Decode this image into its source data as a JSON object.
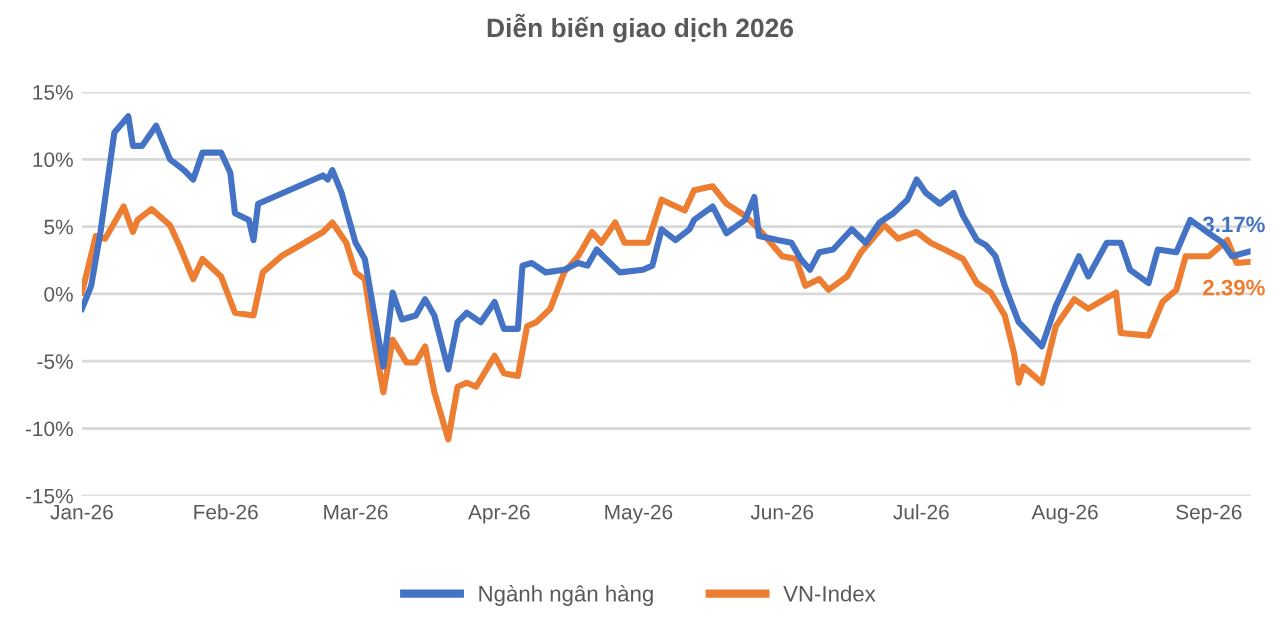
{
  "chart_data": {
    "type": "line",
    "title": "Diễn biến giao dịch 2026",
    "series": [
      {
        "name": "Ngành ngân hàng",
        "color": "#4472c4",
        "x": [
          "2026-01-01",
          "2026-01-03",
          "2026-01-05",
          "2026-01-08",
          "2026-01-11",
          "2026-01-12",
          "2026-01-14",
          "2026-01-17",
          "2026-01-20",
          "2026-01-23",
          "2026-01-25",
          "2026-01-27",
          "2026-01-31",
          "2026-02-02",
          "2026-02-03",
          "2026-02-06",
          "2026-02-07",
          "2026-02-08",
          "2026-02-10",
          "2026-02-22",
          "2026-02-23",
          "2026-02-24",
          "2026-02-26",
          "2026-03-01",
          "2026-03-03",
          "2026-03-05",
          "2026-03-07",
          "2026-03-09",
          "2026-03-11",
          "2026-03-14",
          "2026-03-16",
          "2026-03-18",
          "2026-03-21",
          "2026-03-23",
          "2026-03-25",
          "2026-03-28",
          "2026-03-31",
          "2026-04-02",
          "2026-04-05",
          "2026-04-06",
          "2026-04-08",
          "2026-04-11",
          "2026-04-15",
          "2026-04-18",
          "2026-04-20",
          "2026-04-22",
          "2026-04-24",
          "2026-04-27",
          "2026-05-02",
          "2026-05-04",
          "2026-05-06",
          "2026-05-09",
          "2026-05-12",
          "2026-05-13",
          "2026-05-17",
          "2026-05-20",
          "2026-05-24",
          "2026-05-26",
          "2026-05-27",
          "2026-05-31",
          "2026-06-03",
          "2026-06-05",
          "2026-06-07",
          "2026-06-09",
          "2026-06-12",
          "2026-06-16",
          "2026-06-19",
          "2026-06-22",
          "2026-06-25",
          "2026-06-28",
          "2026-06-30",
          "2026-07-02",
          "2026-07-05",
          "2026-07-08",
          "2026-07-10",
          "2026-07-13",
          "2026-07-15",
          "2026-07-17",
          "2026-07-19",
          "2026-07-22",
          "2026-07-27",
          "2026-07-30",
          "2026-08-04",
          "2026-08-06",
          "2026-08-10",
          "2026-08-13",
          "2026-08-15",
          "2026-08-19",
          "2026-08-21",
          "2026-08-25",
          "2026-08-28",
          "2026-09-01",
          "2026-09-04",
          "2026-09-06",
          "2026-09-10"
        ],
        "values": [
          -1.1,
          0.6,
          4.6,
          12,
          13.2,
          11,
          11,
          12.5,
          10,
          9.2,
          8.5,
          10.5,
          10.5,
          9,
          6,
          5.5,
          4,
          6.7,
          7,
          8.8,
          8.5,
          9.2,
          7.5,
          3.8,
          2.6,
          -1.4,
          -5.4,
          0.1,
          -1.9,
          -1.6,
          -0.4,
          -1.6,
          -5.6,
          -2.1,
          -1.4,
          -2.1,
          -0.6,
          -2.6,
          -2.6,
          2.1,
          2.3,
          1.6,
          1.8,
          2.3,
          2.1,
          3.3,
          2.6,
          1.6,
          1.8,
          2.1,
          4.8,
          4.0,
          4.8,
          5.5,
          6.5,
          4.5,
          5.5,
          7.2,
          4.3,
          4.0,
          3.8,
          2.6,
          1.8,
          3.1,
          3.3,
          4.8,
          3.8,
          5.3,
          6.0,
          7.0,
          8.5,
          7.5,
          6.7,
          7.5,
          5.8,
          4.0,
          3.6,
          2.8,
          0.6,
          -2.1,
          -3.9,
          -0.9,
          2.8,
          1.3,
          3.8,
          3.8,
          1.8,
          0.8,
          3.3,
          3.1,
          5.5,
          4.5,
          3.8,
          2.8,
          3.17
        ]
      },
      {
        "name": "VN-Index",
        "color": "#ed7d31",
        "x": [
          "2026-01-01",
          "2026-01-04",
          "2026-01-06",
          "2026-01-10",
          "2026-01-12",
          "2026-01-13",
          "2026-01-16",
          "2026-01-20",
          "2026-01-22",
          "2026-01-25",
          "2026-01-27",
          "2026-01-31",
          "2026-02-03",
          "2026-02-07",
          "2026-02-09",
          "2026-02-13",
          "2026-02-22",
          "2026-02-24",
          "2026-02-27",
          "2026-03-01",
          "2026-03-03",
          "2026-03-05",
          "2026-03-07",
          "2026-03-09",
          "2026-03-12",
          "2026-03-14",
          "2026-03-16",
          "2026-03-18",
          "2026-03-21",
          "2026-03-23",
          "2026-03-25",
          "2026-03-27",
          "2026-03-31",
          "2026-04-02",
          "2026-04-05",
          "2026-04-07",
          "2026-04-09",
          "2026-04-12",
          "2026-04-15",
          "2026-04-18",
          "2026-04-21",
          "2026-04-23",
          "2026-04-26",
          "2026-04-28",
          "2026-05-03",
          "2026-05-06",
          "2026-05-11",
          "2026-05-13",
          "2026-05-17",
          "2026-05-20",
          "2026-05-24",
          "2026-05-27",
          "2026-06-01",
          "2026-06-04",
          "2026-06-06",
          "2026-06-09",
          "2026-06-11",
          "2026-06-15",
          "2026-06-18",
          "2026-06-23",
          "2026-06-26",
          "2026-06-30",
          "2026-07-03",
          "2026-07-06",
          "2026-07-10",
          "2026-07-13",
          "2026-07-16",
          "2026-07-19",
          "2026-07-21",
          "2026-07-22",
          "2026-07-23",
          "2026-07-27",
          "2026-07-30",
          "2026-08-03",
          "2026-08-06",
          "2026-08-12",
          "2026-08-13",
          "2026-08-19",
          "2026-08-22",
          "2026-08-25",
          "2026-08-27",
          "2026-09-01",
          "2026-09-05",
          "2026-09-07",
          "2026-09-10"
        ],
        "values": [
          0.1,
          4.3,
          4.1,
          6.5,
          4.6,
          5.5,
          6.3,
          5.1,
          3.6,
          1.1,
          2.6,
          1.3,
          -1.4,
          -1.6,
          1.6,
          2.8,
          4.6,
          5.3,
          3.8,
          1.6,
          1.1,
          -3.4,
          -7.3,
          -3.4,
          -5.1,
          -5.1,
          -3.9,
          -7.3,
          -10.8,
          -6.9,
          -6.6,
          -6.9,
          -4.6,
          -5.9,
          -6.1,
          -2.4,
          -2.1,
          -1.1,
          1.6,
          2.8,
          4.6,
          3.8,
          5.3,
          3.8,
          3.8,
          7.0,
          6.2,
          7.7,
          8.0,
          6.7,
          5.8,
          4.8,
          2.8,
          2.6,
          0.6,
          1.1,
          0.3,
          1.3,
          3.1,
          5.1,
          4.1,
          4.6,
          3.8,
          3.3,
          2.6,
          0.8,
          0.1,
          -1.6,
          -4.4,
          -6.6,
          -5.4,
          -6.6,
          -2.4,
          -0.4,
          -1.1,
          0.1,
          -2.9,
          -3.1,
          -0.6,
          0.3,
          2.8,
          2.8,
          4.0,
          2.3,
          2.39
        ]
      }
    ],
    "xlim": [
      "2026-01-01",
      "2026-09-10"
    ],
    "xticks": [
      {
        "value": "2026-01-01",
        "label": "Jan-26"
      },
      {
        "value": "2026-02-01",
        "label": "Feb-26"
      },
      {
        "value": "2026-03-01",
        "label": "Mar-26"
      },
      {
        "value": "2026-04-01",
        "label": "Apr-26"
      },
      {
        "value": "2026-05-01",
        "label": "May-26"
      },
      {
        "value": "2026-06-01",
        "label": "Jun-26"
      },
      {
        "value": "2026-07-01",
        "label": "Jul-26"
      },
      {
        "value": "2026-08-01",
        "label": "Aug-26"
      },
      {
        "value": "2026-09-01",
        "label": "Sep-26"
      }
    ],
    "ylim": [
      -15,
      15
    ],
    "yticks": [
      {
        "value": -15,
        "label": "-15%"
      },
      {
        "value": -10,
        "label": "-10%"
      },
      {
        "value": -5,
        "label": "-5%"
      },
      {
        "value": 0,
        "label": "0%"
      },
      {
        "value": 5,
        "label": "5%"
      },
      {
        "value": 10,
        "label": "10%"
      },
      {
        "value": 15,
        "label": "15%"
      }
    ],
    "annotations": [
      {
        "text": "3.17%",
        "x": "2026-09-10",
        "y": 3.17
      },
      {
        "text": "2.39%",
        "x": "2026-09-10",
        "y": 2.39
      }
    ],
    "grid": "y",
    "legend": "bottom",
    "marker": "none",
    "line_style": "solid"
  }
}
